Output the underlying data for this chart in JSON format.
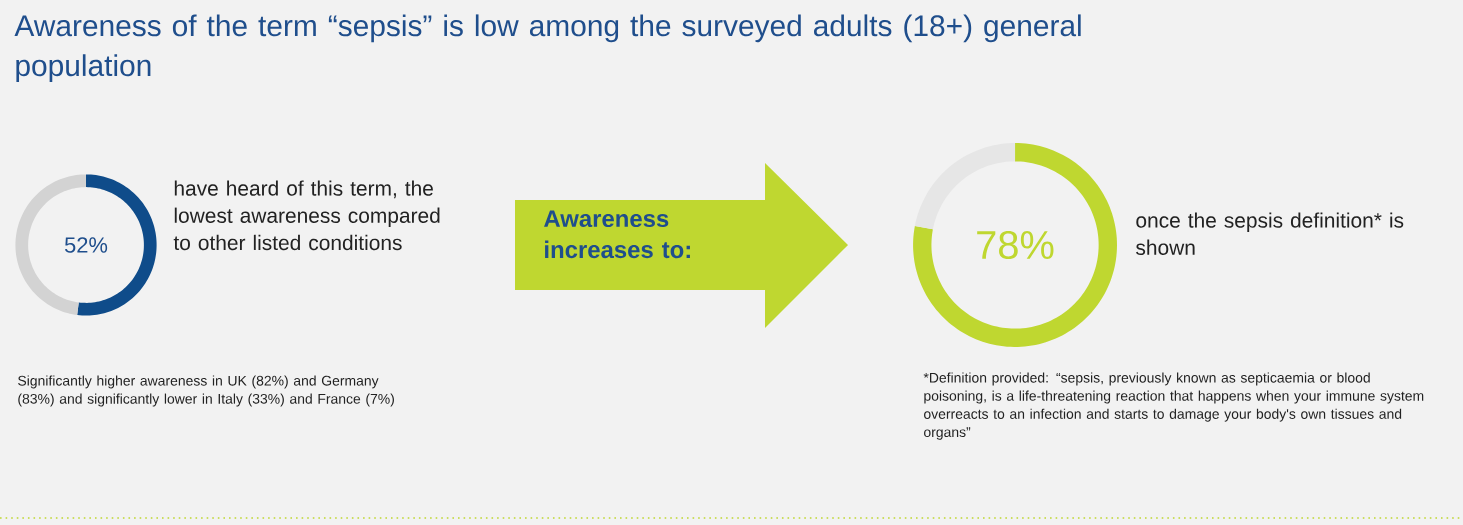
{
  "chart_data": [
    {
      "type": "donut",
      "title": "Awareness of the term “sepsis” is low among the surveyed adults (18+) general population",
      "categories": [
        null,
        null
      ],
      "values": [
        52,
        48
      ],
      "colors": [
        "#0f4c8a",
        "#d3d3d3"
      ],
      "value_labels": [
        "52%",
        null
      ],
      "annotations": [
        "have heard of this term, the lowest awareness compared to other listed conditions",
        "Significantly higher awareness in UK (82%) and Germany (83%) and significantly lower in Italy (33%) and France (7%)"
      ]
    },
    {
      "type": "donut",
      "categories": [
        null,
        null
      ],
      "values": [
        78,
        22
      ],
      "colors": [
        "#bfd730",
        "#e6e6e6"
      ],
      "value_labels": [
        "78%",
        null
      ],
      "annotations": [
        "Awareness increases to:",
        "once the sepsis definition* is shown",
        "*Definition provided: “sepsis, previously known as septicaemia or blood poisoning, is a life-threatening reaction that happens when your immune system overreacts to an infection and starts to damage your body's own tissues and organs”"
      ]
    }
  ]
}
